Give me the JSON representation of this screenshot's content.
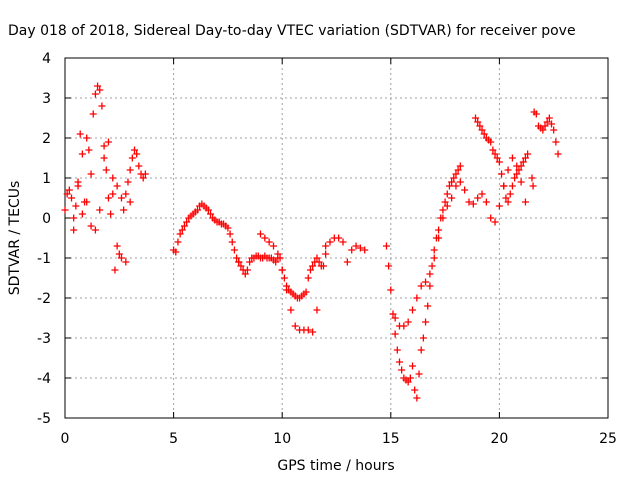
{
  "chart_data": {
    "type": "scatter",
    "title": "Day 018 of 2018, Sidereal Day-to-day VTEC variation (SDTVAR) for receiver pove",
    "xlabel": "GPS time / hours",
    "ylabel": "SDTVAR / TECUs",
    "xlim": [
      0,
      25
    ],
    "ylim": [
      -5,
      4
    ],
    "xticks": [
      0,
      5,
      10,
      15,
      20,
      25
    ],
    "yticks": [
      -5,
      -4,
      -3,
      -2,
      -1,
      0,
      1,
      2,
      3,
      4
    ],
    "grid": true,
    "legend": "none",
    "marker": "plus",
    "color": "#ff0000",
    "series": [
      {
        "x": [
          0.0,
          0.1,
          0.2,
          0.3,
          0.4,
          0.5,
          0.6,
          0.7,
          0.8,
          0.9,
          1.0,
          1.1,
          1.2,
          1.3,
          1.4,
          1.5,
          1.6,
          1.7,
          1.8,
          1.9,
          2.0,
          2.1,
          2.2,
          2.3,
          2.4,
          2.5,
          2.6,
          2.7,
          2.8,
          2.9,
          3.0,
          3.1,
          3.2,
          3.3,
          3.4,
          3.5,
          3.6,
          3.7
        ],
        "y": [
          0.2,
          0.6,
          0.7,
          0.5,
          0.0,
          0.3,
          0.9,
          2.1,
          1.6,
          0.4,
          2.0,
          1.7,
          1.1,
          2.6,
          3.1,
          3.3,
          3.2,
          2.8,
          1.8,
          1.2,
          0.5,
          0.1,
          1.0,
          -1.3,
          0.8,
          -0.9,
          0.5,
          0.2,
          0.6,
          0.9,
          1.2,
          1.5,
          1.7,
          1.6,
          1.3,
          1.1,
          1.0,
          1.1
        ]
      },
      {
        "x": [
          0.4,
          0.6,
          0.8,
          1.0,
          1.2,
          1.4,
          1.6,
          1.8,
          2.0,
          2.2,
          2.4,
          2.6,
          2.8,
          3.0
        ],
        "y": [
          -0.3,
          0.8,
          0.1,
          0.4,
          -0.2,
          -0.3,
          0.2,
          1.5,
          1.9,
          0.6,
          -0.7,
          -1.0,
          -1.1,
          0.4
        ]
      },
      {
        "x": [
          5.0,
          5.1,
          5.2,
          5.3,
          5.4,
          5.5,
          5.6,
          5.7,
          5.8,
          5.9,
          6.0,
          6.1,
          6.2,
          6.3,
          6.4,
          6.5,
          6.6,
          6.7,
          6.8,
          6.9,
          7.0,
          7.1,
          7.2,
          7.3,
          7.4,
          7.5,
          7.6,
          7.7,
          7.8,
          7.9,
          8.0
        ],
        "y": [
          -0.8,
          -0.85,
          -0.6,
          -0.4,
          -0.3,
          -0.2,
          -0.1,
          0.0,
          0.05,
          0.1,
          0.15,
          0.2,
          0.3,
          0.35,
          0.3,
          0.25,
          0.2,
          0.1,
          0.0,
          -0.05,
          -0.1,
          -0.1,
          -0.15,
          -0.15,
          -0.2,
          -0.25,
          -0.4,
          -0.6,
          -0.8,
          -1.0,
          -1.1
        ]
      },
      {
        "x": [
          8.0,
          8.1,
          8.2,
          8.3,
          8.4,
          8.5,
          8.6,
          8.7,
          8.8,
          8.9,
          9.0,
          9.1,
          9.2,
          9.3,
          9.4,
          9.5,
          9.6,
          9.7,
          9.8,
          9.9,
          10.0,
          10.1,
          10.2,
          10.3,
          10.4,
          10.5,
          10.6,
          10.7,
          10.8,
          10.9,
          11.0,
          11.1,
          11.2,
          11.3,
          11.4,
          11.5,
          11.6,
          11.7,
          11.8,
          11.9,
          12.0
        ],
        "y": [
          -1.1,
          -1.2,
          -1.3,
          -1.4,
          -1.3,
          -1.1,
          -1.0,
          -1.0,
          -0.95,
          -0.95,
          -1.0,
          -1.0,
          -0.95,
          -1.0,
          -1.0,
          -1.0,
          -1.05,
          -1.1,
          -1.0,
          -1.0,
          -1.3,
          -1.5,
          -1.7,
          -1.8,
          -1.85,
          -1.9,
          -1.95,
          -2.0,
          -2.0,
          -1.95,
          -1.9,
          -1.85,
          -1.5,
          -1.3,
          -1.2,
          -1.1,
          -1.0,
          -1.1,
          -1.2,
          -1.2,
          -0.9
        ]
      },
      {
        "x": [
          9.0,
          9.2,
          9.4,
          9.6,
          9.8,
          10.0,
          10.2,
          10.4,
          10.6,
          10.8,
          11.0,
          11.2,
          11.4,
          11.6
        ],
        "y": [
          -0.4,
          -0.5,
          -0.6,
          -0.7,
          -0.9,
          -1.3,
          -1.8,
          -2.3,
          -2.7,
          -2.8,
          -2.8,
          -2.8,
          -2.85,
          -2.3
        ]
      },
      {
        "x": [
          12.0,
          12.2,
          12.4,
          12.6,
          12.8,
          13.0,
          13.2,
          13.4,
          13.6,
          13.8
        ],
        "y": [
          -0.7,
          -0.6,
          -0.5,
          -0.5,
          -0.6,
          -1.1,
          -0.8,
          -0.7,
          -0.75,
          -0.8
        ]
      },
      {
        "x": [
          14.8,
          14.9,
          15.0,
          15.1,
          15.2,
          15.3,
          15.4,
          15.5,
          15.6,
          15.7,
          15.8,
          15.9,
          16.0,
          16.1,
          16.2,
          16.3,
          16.4,
          16.5,
          16.6,
          16.7,
          16.8,
          16.9,
          17.0,
          17.1,
          17.2,
          17.3,
          17.4,
          17.5,
          17.6,
          17.7,
          17.8,
          17.9,
          18.0,
          18.1,
          18.2
        ],
        "y": [
          -0.7,
          -1.2,
          -1.8,
          -2.4,
          -2.9,
          -3.3,
          -3.6,
          -3.8,
          -4.0,
          -4.05,
          -4.1,
          -4.0,
          -3.7,
          -4.3,
          -4.5,
          -3.9,
          -3.3,
          -3.0,
          -2.6,
          -2.2,
          -1.7,
          -1.2,
          -0.8,
          -0.5,
          -0.3,
          0.0,
          0.2,
          0.4,
          0.6,
          0.8,
          0.9,
          1.0,
          1.1,
          1.2,
          1.3
        ]
      },
      {
        "x": [
          15.2,
          15.4,
          15.6,
          15.8,
          16.0,
          16.2,
          16.4,
          16.6,
          16.8,
          17.0,
          17.2,
          17.4,
          17.6,
          17.8,
          18.0,
          18.2,
          18.4,
          18.6,
          18.8,
          19.0,
          19.2,
          19.4,
          19.6,
          19.8
        ],
        "y": [
          -2.5,
          -2.7,
          -2.7,
          -2.6,
          -2.3,
          -2.0,
          -1.7,
          -1.6,
          -1.4,
          -1.0,
          -0.5,
          0.0,
          0.3,
          0.5,
          0.8,
          0.9,
          0.7,
          0.4,
          0.35,
          0.5,
          0.6,
          0.4,
          0.0,
          -0.1
        ]
      },
      {
        "x": [
          18.9,
          19.0,
          19.1,
          19.2,
          19.3,
          19.4,
          19.5,
          19.6,
          19.7,
          19.8,
          19.9,
          20.0,
          20.1,
          20.2,
          20.3,
          20.4,
          20.5,
          20.6,
          20.7,
          20.8,
          20.9,
          21.0,
          21.1,
          21.2,
          21.3
        ],
        "y": [
          2.5,
          2.4,
          2.3,
          2.2,
          2.1,
          2.0,
          1.95,
          1.9,
          1.7,
          1.6,
          1.5,
          1.4,
          1.1,
          0.8,
          0.5,
          0.4,
          0.6,
          0.8,
          1.0,
          1.1,
          1.2,
          1.3,
          1.4,
          1.5,
          1.6
        ]
      },
      {
        "x": [
          20.0,
          20.2,
          20.4,
          20.6,
          20.8,
          21.0,
          21.2
        ],
        "y": [
          0.3,
          0.8,
          1.2,
          1.5,
          1.3,
          0.9,
          0.4
        ]
      },
      {
        "x": [
          21.6,
          21.7,
          21.8,
          21.9,
          22.0,
          22.1,
          22.2,
          22.3,
          22.4,
          22.5,
          22.6,
          22.7
        ],
        "y": [
          2.65,
          2.6,
          2.3,
          2.25,
          2.2,
          2.3,
          2.4,
          2.5,
          2.35,
          2.2,
          1.9,
          1.6
        ]
      },
      {
        "x": [
          21.5,
          21.55
        ],
        "y": [
          1.0,
          0.8
        ]
      }
    ]
  }
}
